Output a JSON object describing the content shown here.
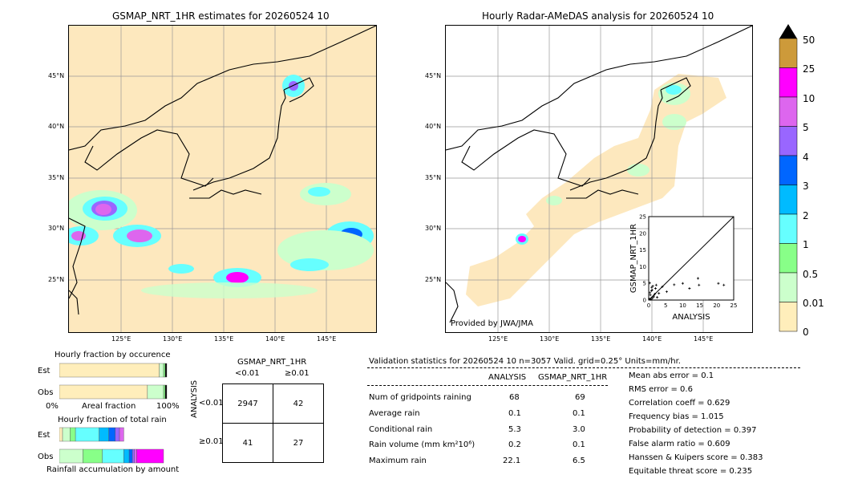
{
  "left_map": {
    "title": "GSMAP_NRT_1HR estimates for 20260524 10",
    "lat_labels": [
      "45°N",
      "40°N",
      "35°N",
      "30°N",
      "25°N"
    ],
    "lon_labels": [
      "125°E",
      "130°E",
      "135°E",
      "140°E",
      "145°E"
    ]
  },
  "right_map": {
    "title": "Hourly Radar-AMeDAS analysis for 20260524 10",
    "lat_labels": [
      "45°N",
      "40°N",
      "35°N",
      "30°N",
      "25°N"
    ],
    "lon_labels": [
      "125°E",
      "130°E",
      "135°E",
      "140°E",
      "145°E"
    ],
    "provider": "Provided by JWA/JMA"
  },
  "colorbar": {
    "labels": [
      "50",
      "25",
      "10",
      "5",
      "4",
      "3",
      "2",
      "1",
      "0.5",
      "0.01",
      "0"
    ],
    "colors": [
      "#cd9a3a",
      "#ff00ff",
      "#dd66ee",
      "#9966ff",
      "#0066ff",
      "#00bbff",
      "#66ffff",
      "#88ff88",
      "#ccffcc",
      "#ffeebb"
    ]
  },
  "chart_data": [
    {
      "type": "scatter",
      "title": "",
      "xlabel": "ANALYSIS",
      "ylabel": "GSMAP_NRT_1HR",
      "xlim": [
        0,
        25
      ],
      "ylim": [
        0,
        25
      ],
      "x_ticks": [
        "0",
        "5",
        "10",
        "15",
        "20",
        "25"
      ],
      "y_ticks": [
        "0",
        "5",
        "10",
        "15",
        "20",
        "25"
      ],
      "x": [
        0.2,
        0.5,
        0.8,
        1.0,
        1.2,
        1.5,
        2.0,
        2.5,
        3.0,
        0.3,
        0.6,
        1.0,
        1.8,
        2.2,
        4.0,
        5.3,
        7.5,
        10.0,
        12.0,
        14.5,
        14.8,
        20.5,
        22.1,
        0.4,
        0.9,
        1.4
      ],
      "y": [
        0.3,
        1.5,
        2.8,
        0.5,
        4.2,
        1.2,
        3.5,
        0.8,
        2.0,
        5.1,
        0.2,
        3.0,
        1.8,
        4.5,
        4.0,
        2.5,
        4.6,
        5.0,
        3.5,
        6.5,
        4.5,
        5.0,
        4.5,
        2.2,
        3.8,
        0.9
      ]
    },
    {
      "type": "bar",
      "title": "Hourly fraction by occurence",
      "xlabel": "Areal fraction",
      "x_ticks": [
        "0%",
        "100%"
      ],
      "categories": [
        "Est",
        "Obs"
      ],
      "series": [
        {
          "values": [
            0.93,
            0.82
          ],
          "color": "#ffeebb"
        },
        {
          "values": [
            0.04,
            0.15
          ],
          "color": "#ccffcc"
        },
        {
          "values": [
            0.015,
            0.015
          ],
          "color": "#88ff88"
        },
        {
          "values": [
            0.015,
            0.015
          ],
          "color": "#000000"
        }
      ]
    },
    {
      "type": "bar",
      "title": "Hourly fraction of total rain",
      "xlabel": "Rainfall accumulation by amount",
      "categories": [
        "Est",
        "Obs"
      ],
      "series": [
        {
          "values": [
            0.03,
            0.0
          ],
          "color": "#ffeebb"
        },
        {
          "values": [
            0.07,
            0.22
          ],
          "color": "#ccffcc"
        },
        {
          "values": [
            0.05,
            0.18
          ],
          "color": "#88ff88"
        },
        {
          "values": [
            0.22,
            0.2
          ],
          "color": "#66ffff"
        },
        {
          "values": [
            0.09,
            0.05
          ],
          "color": "#00bbff"
        },
        {
          "values": [
            0.06,
            0.03
          ],
          "color": "#0066ff"
        },
        {
          "values": [
            0.04,
            0.02
          ],
          "color": "#9966ff"
        },
        {
          "values": [
            0.04,
            0.02
          ],
          "color": "#dd66ee"
        },
        {
          "values": [
            0.0,
            0.25
          ],
          "color": "#ff00ff"
        }
      ]
    },
    {
      "type": "table",
      "title": "GSMAP_NRT_1HR",
      "col_labels": [
        "<0.01",
        "≥0.01"
      ],
      "row_axis_label": "ANALYSIS",
      "row_labels": [
        "<0.01",
        "≥0.01"
      ],
      "cells": [
        [
          "2947",
          "42"
        ],
        [
          "41",
          "27"
        ]
      ]
    }
  ],
  "validation": {
    "header": "Validation statistics for 20260524 10  n=3057 Valid. grid=0.25° Units=mm/hr.",
    "col1": "ANALYSIS",
    "col2": "GSMAP_NRT_1HR",
    "rows": [
      {
        "label": "Num of gridpoints raining",
        "a": "68",
        "g": "69"
      },
      {
        "label": "Average rain",
        "a": "0.1",
        "g": "0.1"
      },
      {
        "label": "Conditional rain",
        "a": "5.3",
        "g": "3.0"
      },
      {
        "label": "Rain volume (mm km²10⁶)",
        "a": "0.2",
        "g": "0.1"
      },
      {
        "label": "Maximum rain",
        "a": "22.1",
        "g": "6.5"
      }
    ],
    "scores": [
      "Mean abs error =    0.1",
      "RMS error =    0.6",
      "Correlation coeff =  0.629",
      "Frequency bias =  1.015",
      "Probability of detection =  0.397",
      "False alarm ratio =  0.609",
      "Hanssen & Kuipers score =  0.383",
      "Equitable threat score =  0.235"
    ]
  }
}
